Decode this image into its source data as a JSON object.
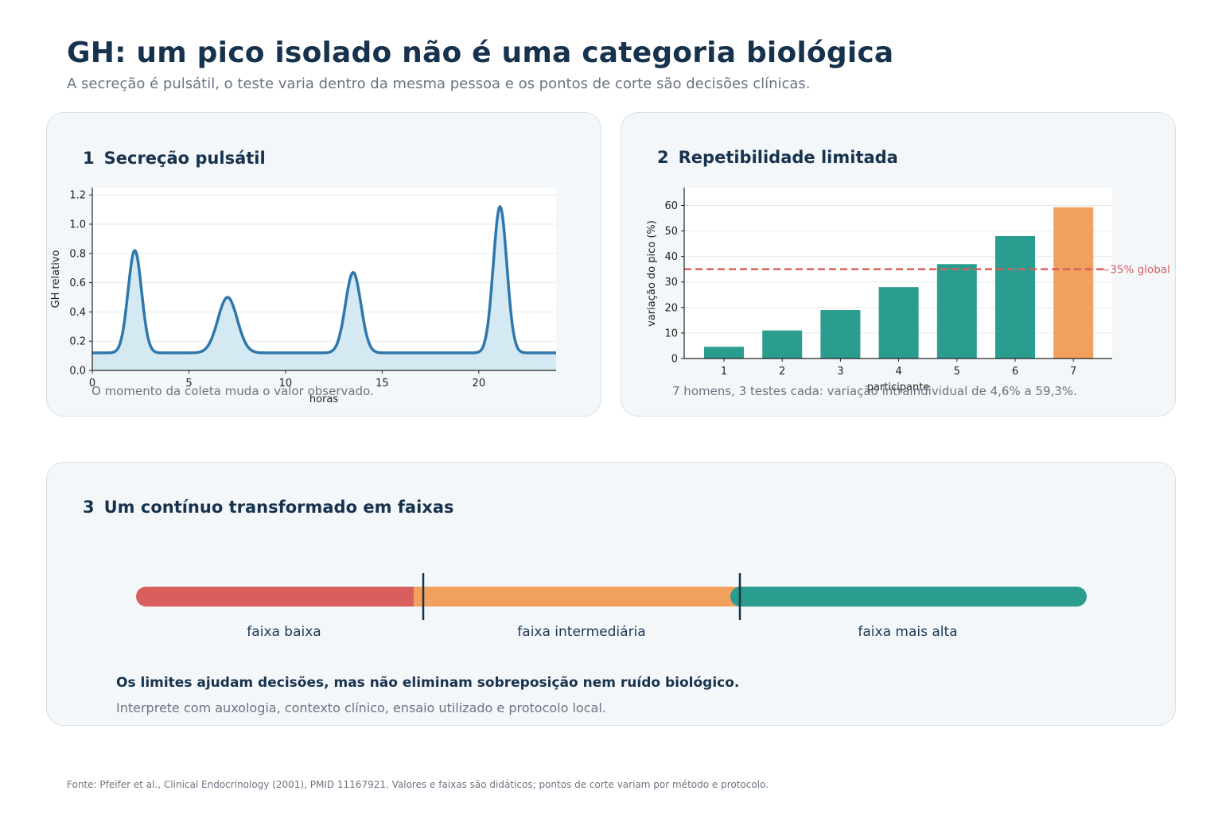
{
  "header": {
    "title": "GH: um pico isolado não é uma categoria biológica",
    "subtitle": "A secreção é pulsátil, o teste varia dentro da mesma pessoa e os pontos de corte são decisões clínicas."
  },
  "panel1": {
    "number": "1",
    "title": "Secreção pulsátil",
    "caption": "O momento da coleta muda o valor observado."
  },
  "panel2": {
    "number": "2",
    "title": "Repetibilidade limitada",
    "caption": "7 homens, 3 testes cada: variação intraindividual de 4,6% a 59,3%."
  },
  "panel3": {
    "number": "3",
    "title": "Um contínuo transformado em faixas",
    "bands": [
      "faixa baixa",
      "faixa intermediária",
      "faixa mais alta"
    ],
    "note_strong": "Os limites ajudam decisões, mas não eliminam sobreposição nem ruído biológico.",
    "note_sub": "Interprete com auxologia, contexto clínico, ensaio utilizado e protocolo local.",
    "band_colors": [
      "#d95f5f",
      "#f2a05e",
      "#2a9d8f"
    ]
  },
  "source": "Fonte: Pfeifer et al., Clinical Endocrinology (2001), PMID 11167921. Valores e faixas são didáticos; pontos de corte variam por método e protocolo.",
  "chart_data": [
    {
      "type": "line",
      "title": "",
      "xlabel": "horas",
      "ylabel": "GH relativo",
      "xlim": [
        0,
        24
      ],
      "ylim": [
        0,
        1.25
      ],
      "x_ticks": [
        0,
        5,
        10,
        15,
        20
      ],
      "y_ticks": [
        0.0,
        0.2,
        0.4,
        0.6,
        0.8,
        1.0,
        1.2
      ],
      "grid": true,
      "baseline": 0.12,
      "peaks": [
        {
          "x": 2.2,
          "y": 0.82,
          "width": 0.35
        },
        {
          "x": 7.0,
          "y": 0.5,
          "width": 0.5
        },
        {
          "x": 13.5,
          "y": 0.67,
          "width": 0.4
        },
        {
          "x": 21.1,
          "y": 1.12,
          "width": 0.35
        }
      ],
      "color": "#2e77ad",
      "fill_color": "#d4e9f1"
    },
    {
      "type": "bar",
      "title": "",
      "xlabel": "participante",
      "ylabel": "variação do pico (%)",
      "categories": [
        "1",
        "2",
        "3",
        "4",
        "5",
        "6",
        "7"
      ],
      "values": [
        4.6,
        11,
        19,
        28,
        37,
        48,
        59.3
      ],
      "ylim": [
        0,
        67
      ],
      "y_ticks": [
        0,
        10,
        20,
        30,
        40,
        50,
        60
      ],
      "grid": true,
      "bar_colors": [
        "#2a9d8f",
        "#2a9d8f",
        "#2a9d8f",
        "#2a9d8f",
        "#2a9d8f",
        "#2a9d8f",
        "#f2a05e"
      ],
      "reference_line": {
        "value": 35,
        "label": "~35% global",
        "color": "#d95f5f"
      }
    }
  ]
}
